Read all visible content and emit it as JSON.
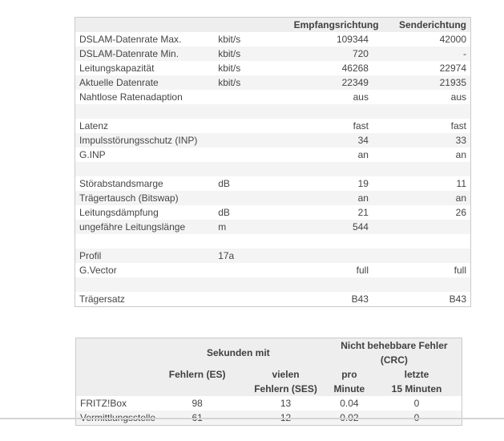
{
  "colors": {
    "page_bg": "#ffffff",
    "table_header_bg": "#eeeeee",
    "row_stripe_bg": "#f4f4f4",
    "table_border": "#c9c9c9",
    "text": "#454545",
    "divider": "#d4d4d4"
  },
  "dsl_table": {
    "headers": {
      "rx": "Empfangsrichtung",
      "tx": "Senderichtung"
    },
    "rows": [
      {
        "label": "DSLAM-Datenrate Max.",
        "unit": "kbit/s",
        "rx": "109344",
        "tx": "42000"
      },
      {
        "label": "DSLAM-Datenrate Min.",
        "unit": "kbit/s",
        "rx": "720",
        "tx": "-"
      },
      {
        "label": "Leitungskapazität",
        "unit": "kbit/s",
        "rx": "46268",
        "tx": "22974"
      },
      {
        "label": "Aktuelle Datenrate",
        "unit": "kbit/s",
        "rx": "22349",
        "tx": "21935"
      },
      {
        "label": "Nahtlose Ratenadaption",
        "unit": "",
        "rx": "aus",
        "tx": "aus"
      },
      {
        "label": "",
        "unit": "",
        "rx": "",
        "tx": ""
      },
      {
        "label": "Latenz",
        "unit": "",
        "rx": "fast",
        "tx": "fast"
      },
      {
        "label": "Impulsstörungsschutz (INP)",
        "unit": "",
        "rx": "34",
        "tx": "33"
      },
      {
        "label": "G.INP",
        "unit": "",
        "rx": "an",
        "tx": "an"
      },
      {
        "label": "",
        "unit": "",
        "rx": "",
        "tx": ""
      },
      {
        "label": "Störabstandsmarge",
        "unit": "dB",
        "rx": "19",
        "tx": "11"
      },
      {
        "label": "Trägertausch (Bitswap)",
        "unit": "",
        "rx": "an",
        "tx": "an"
      },
      {
        "label": "Leitungsdämpfung",
        "unit": "dB",
        "rx": "21",
        "tx": "26"
      },
      {
        "label": "ungefähre Leitungslänge",
        "unit": "m",
        "rx": "544",
        "tx": ""
      },
      {
        "label": "",
        "unit": "",
        "rx": "",
        "tx": ""
      },
      {
        "label": "Profil",
        "unit": "17a",
        "rx": "",
        "tx": ""
      },
      {
        "label": "G.Vector",
        "unit": "",
        "rx": "full",
        "tx": "full"
      },
      {
        "label": "",
        "unit": "",
        "rx": "",
        "tx": ""
      },
      {
        "label": "Trägersatz",
        "unit": "",
        "rx": "B43",
        "tx": "B43"
      }
    ]
  },
  "error_table": {
    "group_headers": {
      "seconds": "Sekunden mit",
      "crc": "Nicht behebbare Fehler (CRC)"
    },
    "col_headers": {
      "es": "Fehlern (ES)",
      "ses": "vielen\nFehlern (SES)",
      "per_minute": "pro\nMinute",
      "last15": "letzte\n15 Minuten"
    },
    "rows": [
      {
        "label": "FRITZ!Box",
        "es": "98",
        "ses": "13",
        "per_minute": "0.04",
        "last15": "0"
      },
      {
        "label": "Vermittlungsstelle",
        "es": "61",
        "ses": "12",
        "per_minute": "0.02",
        "last15": "0"
      }
    ]
  }
}
